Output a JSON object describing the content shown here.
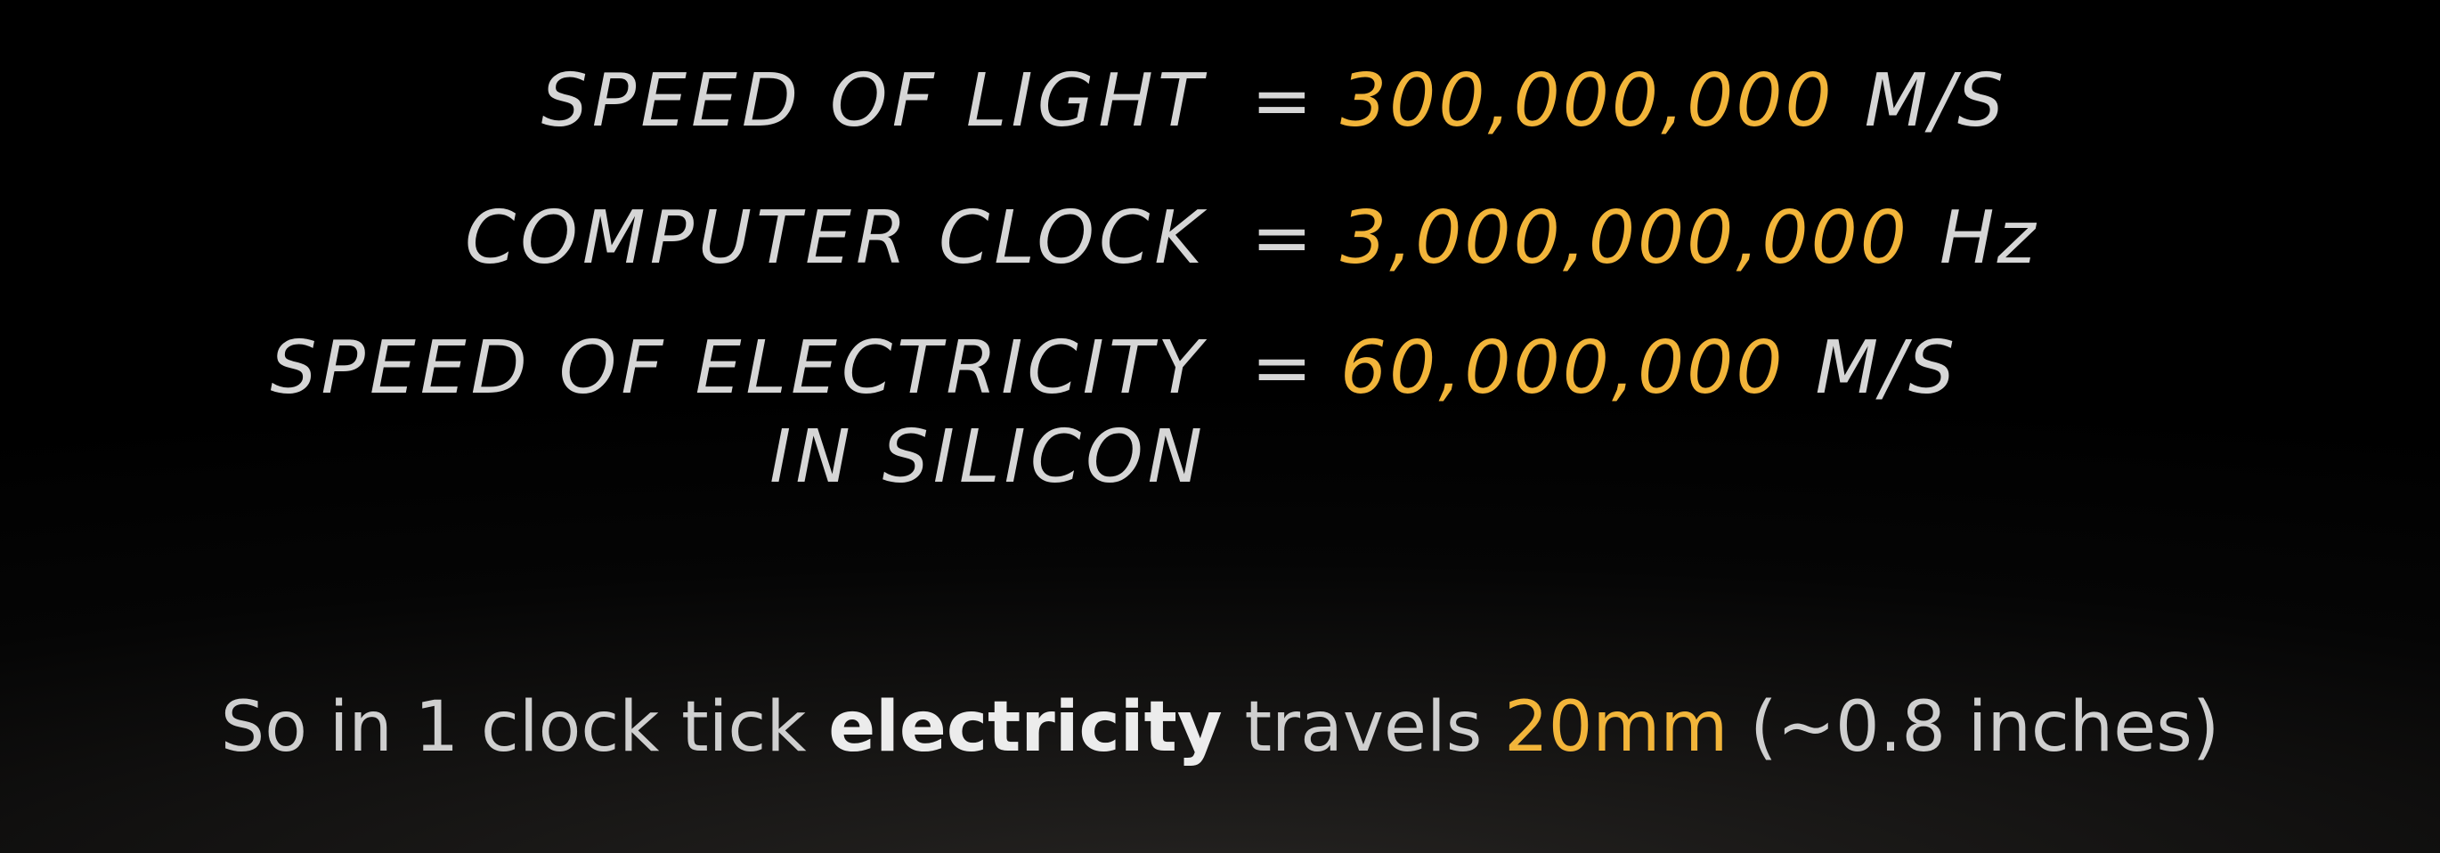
{
  "rows": [
    {
      "label": "SPEED OF LIGHT",
      "equals": "=",
      "value": "300,000,000",
      "unit": "M/S"
    },
    {
      "label": "COMPUTER CLOCK",
      "equals": "=",
      "value": "3,000,000,000",
      "unit": "Hz"
    },
    {
      "label": "SPEED OF ELECTRICITY",
      "label_line2": "IN SILICON",
      "equals": "=",
      "value": "60,000,000",
      "unit": "M/S"
    }
  ],
  "summary": {
    "part1": "So in 1 clock tick ",
    "bold": "electricity",
    "part2": " travels ",
    "highlight": "20mm",
    "part3": " (~0.8 inches)"
  },
  "colors": {
    "background": "#000000",
    "text": "#d6d6d6",
    "accent": "#f2b53a"
  }
}
